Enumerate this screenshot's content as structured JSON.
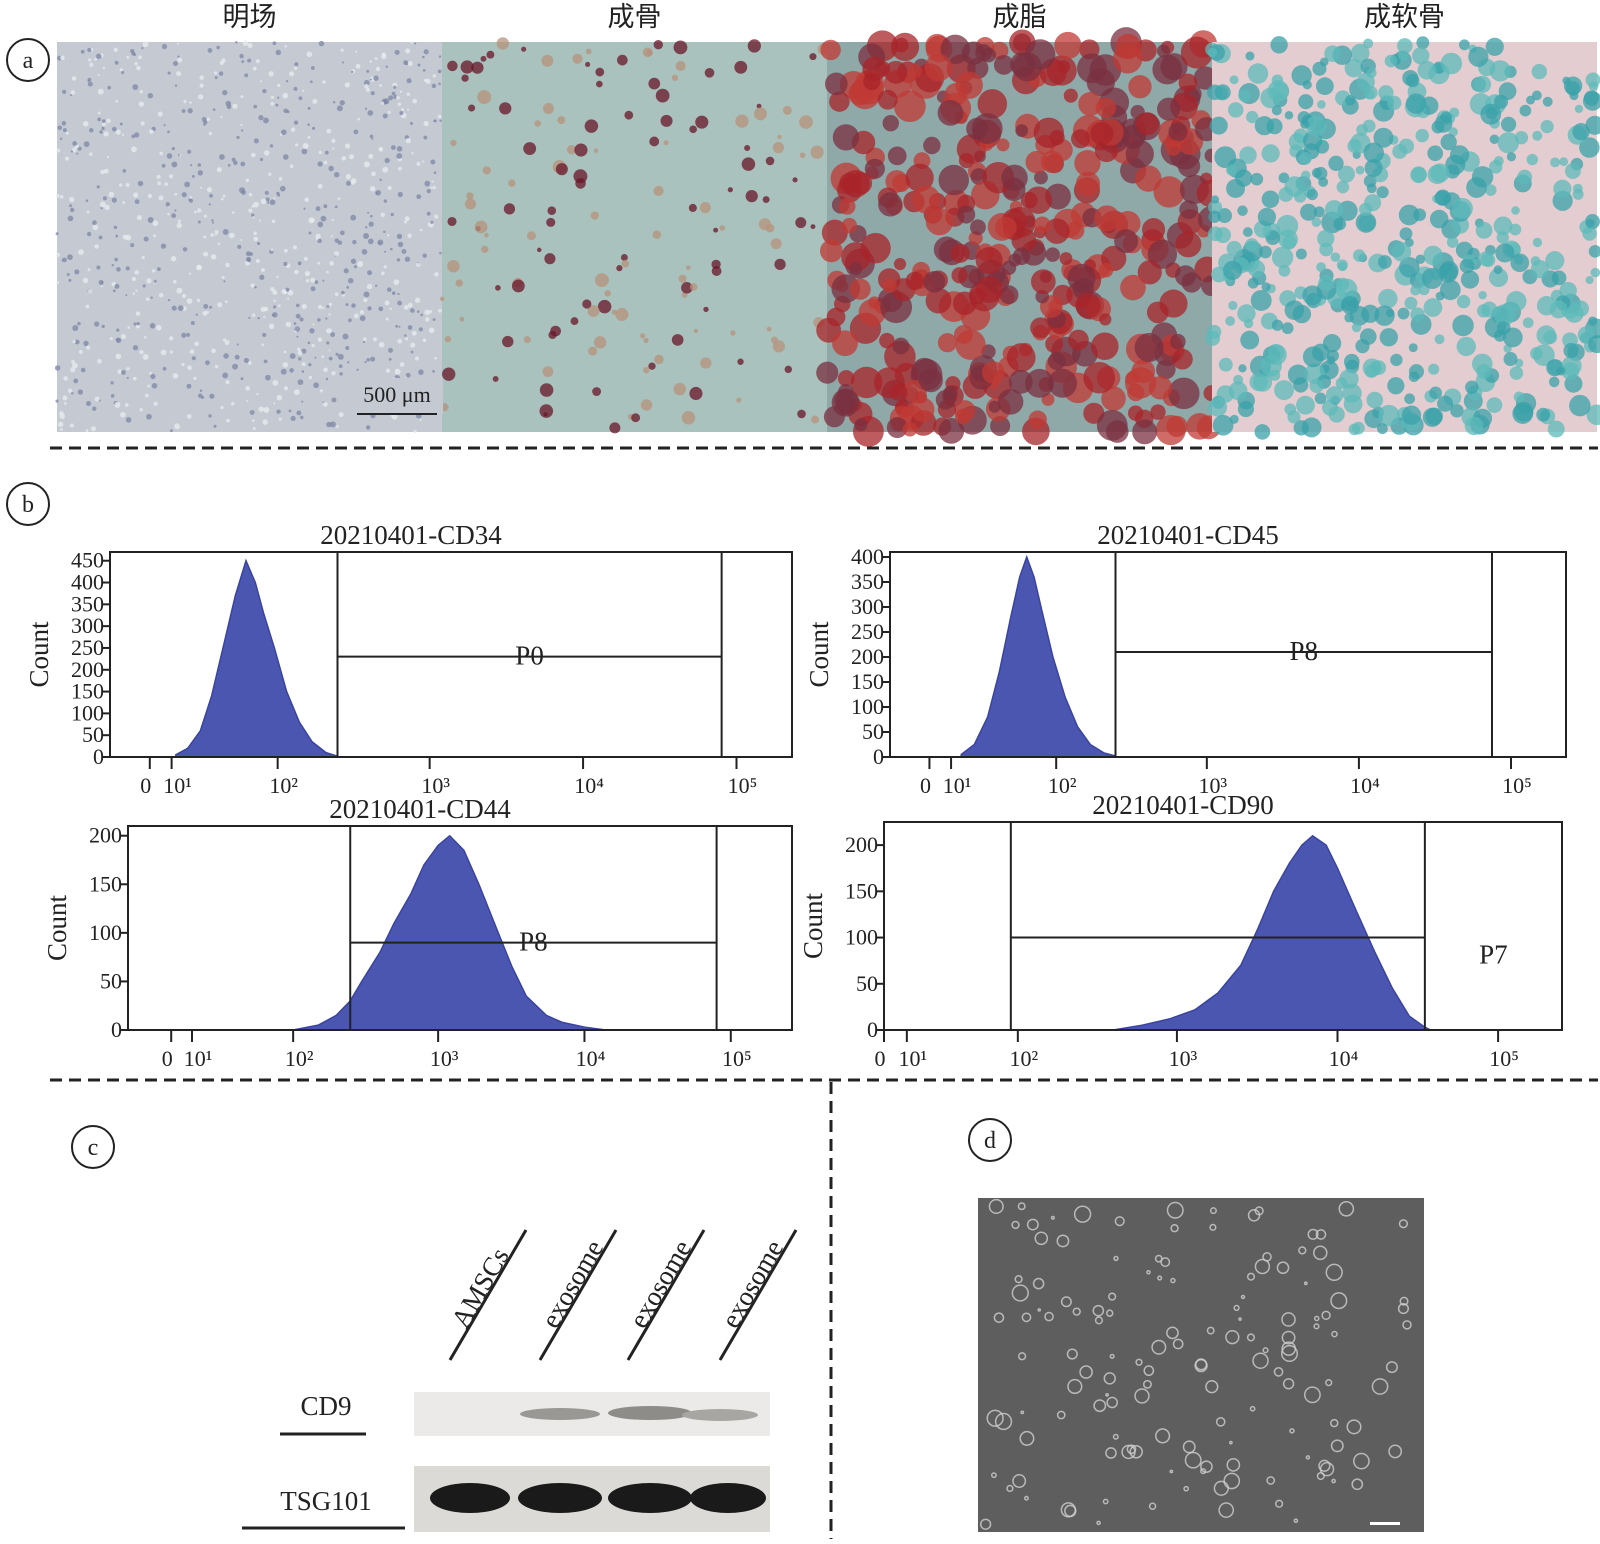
{
  "panel_labels": [
    "a",
    "b",
    "c",
    "d"
  ],
  "images": {
    "titles": [
      "明场",
      "成骨",
      "成脂",
      "成软骨"
    ],
    "scale_bar": "500 μm"
  },
  "chart_data": [
    {
      "type": "area",
      "title": "20210401-CD34",
      "ylabel": "Count",
      "color": "#4a56b0",
      "xscale": "biexponential",
      "x": [
        12,
        18,
        25,
        32,
        40,
        50,
        60,
        70,
        80,
        95,
        115,
        140,
        170,
        210,
        250
      ],
      "values": [
        5,
        20,
        60,
        140,
        250,
        370,
        450,
        400,
        330,
        250,
        150,
        80,
        35,
        10,
        2
      ],
      "xlim": [
        -19,
        230000
      ],
      "ylim": [
        0,
        470
      ],
      "xticks": [
        0,
        {
          "value": 10,
          "label": "10¹"
        },
        {
          "value": 100,
          "label": "10²"
        },
        {
          "value": 1000,
          "label": "10³"
        },
        {
          "value": 10000,
          "label": "10⁴"
        },
        {
          "value": 100000,
          "label": "10⁵"
        }
      ],
      "yticks": [
        0,
        50,
        100,
        150,
        200,
        250,
        300,
        350,
        400,
        450
      ],
      "gate": {
        "name": "P0",
        "x": [
          250,
          80000
        ],
        "y": 230
      }
    },
    {
      "type": "area",
      "title": "20210401-CD45",
      "ylabel": "Count",
      "color": "#4a56b0",
      "xscale": "biexponential",
      "x": [
        15,
        22,
        30,
        38,
        47,
        55,
        62,
        70,
        80,
        95,
        115,
        140,
        170,
        210,
        250
      ],
      "values": [
        5,
        25,
        80,
        170,
        280,
        360,
        400,
        360,
        290,
        200,
        120,
        60,
        25,
        8,
        2
      ],
      "xlim": [
        -19,
        230000
      ],
      "ylim": [
        0,
        410
      ],
      "xticks": [
        0,
        {
          "value": 10,
          "label": "10¹"
        },
        {
          "value": 100,
          "label": "10²"
        },
        {
          "value": 1000,
          "label": "10³"
        },
        {
          "value": 10000,
          "label": "10⁴"
        },
        {
          "value": 100000,
          "label": "10⁵"
        }
      ],
      "yticks": [
        0,
        50,
        100,
        150,
        200,
        250,
        300,
        350,
        400
      ],
      "gate": {
        "name": "P8",
        "x": [
          250,
          75000
        ],
        "y": 210
      }
    },
    {
      "type": "area",
      "title": "20210401-CD44",
      "ylabel": "Count",
      "color": "#4a56b0",
      "xscale": "biexponential",
      "x": [
        100,
        150,
        200,
        250,
        300,
        400,
        500,
        650,
        800,
        1000,
        1200,
        1500,
        1900,
        2500,
        3200,
        4000,
        5500,
        7000,
        10000,
        14000
      ],
      "values": [
        0,
        5,
        15,
        30,
        50,
        80,
        110,
        140,
        170,
        190,
        200,
        185,
        150,
        105,
        65,
        35,
        15,
        8,
        3,
        0
      ],
      "xlim": [
        -22,
        262000
      ],
      "ylim": [
        0,
        210
      ],
      "xticks": [
        0,
        {
          "value": 10,
          "label": "10¹"
        },
        {
          "value": 100,
          "label": "10²"
        },
        {
          "value": 1000,
          "label": "10³"
        },
        {
          "value": 10000,
          "label": "10⁴"
        },
        {
          "value": 100000,
          "label": "10⁵"
        }
      ],
      "yticks": [
        0,
        50,
        100,
        150,
        200
      ],
      "gate": {
        "name": "P8",
        "x": [
          250,
          80000
        ],
        "y": 90
      }
    },
    {
      "type": "area",
      "title": "20210401-CD90",
      "ylabel": "Count",
      "color": "#4a56b0",
      "xscale": "biexponential",
      "x": [
        400,
        600,
        900,
        1300,
        1800,
        2500,
        3200,
        4000,
        5000,
        6000,
        7000,
        8500,
        10000,
        13000,
        17000,
        22000,
        28000,
        35000,
        38000
      ],
      "values": [
        0,
        5,
        12,
        22,
        40,
        70,
        110,
        150,
        180,
        200,
        210,
        200,
        175,
        130,
        85,
        45,
        15,
        3,
        0
      ],
      "xlim": [
        0,
        250000
      ],
      "ylim": [
        0,
        225
      ],
      "xticks": [
        0,
        {
          "value": 10,
          "label": "10¹"
        },
        {
          "value": 100,
          "label": "10²"
        },
        {
          "value": 1000,
          "label": "10³"
        },
        {
          "value": 10000,
          "label": "10⁴"
        },
        {
          "value": 100000,
          "label": "10⁵"
        }
      ],
      "yticks": [
        0,
        50,
        100,
        150,
        200
      ],
      "gate": {
        "name": "P7",
        "x": [
          90,
          35000
        ],
        "y": 100
      }
    }
  ],
  "western_blot": {
    "lanes": [
      "AMSCs",
      "exosome",
      "exosome",
      "exosome"
    ],
    "rows": [
      "CD9",
      "TSG101"
    ]
  }
}
